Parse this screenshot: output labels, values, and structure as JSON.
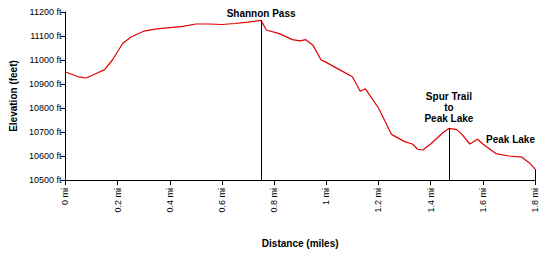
{
  "chart_data": {
    "type": "line",
    "x_label": "Distance (miles)",
    "y_label": "Elevation (feet)",
    "x": [
      0,
      0.05,
      0.08,
      0.12,
      0.15,
      0.18,
      0.22,
      0.25,
      0.3,
      0.35,
      0.4,
      0.45,
      0.5,
      0.55,
      0.6,
      0.65,
      0.7,
      0.75,
      0.77,
      0.82,
      0.87,
      0.9,
      0.92,
      0.95,
      0.98,
      1.0,
      1.05,
      1.1,
      1.13,
      1.15,
      1.2,
      1.25,
      1.3,
      1.33,
      1.35,
      1.37,
      1.4,
      1.45,
      1.47,
      1.5,
      1.52,
      1.55,
      1.58,
      1.6,
      1.65,
      1.7,
      1.75,
      1.78,
      1.8
    ],
    "values": [
      10950,
      10930,
      10925,
      10945,
      10960,
      11000,
      11070,
      11095,
      11120,
      11130,
      11135,
      11140,
      11150,
      11150,
      11148,
      11152,
      11158,
      11165,
      11125,
      11110,
      11085,
      11080,
      11085,
      11060,
      11000,
      10990,
      10960,
      10930,
      10870,
      10880,
      10800,
      10690,
      10660,
      10650,
      10628,
      10625,
      10650,
      10700,
      10715,
      10710,
      10690,
      10650,
      10670,
      10650,
      10610,
      10600,
      10595,
      10570,
      10545
    ],
    "color": "#e00000",
    "xlim": [
      0,
      1.8
    ],
    "xticks": [
      {
        "value": 0,
        "label": "0 mi"
      },
      {
        "value": 0.2,
        "label": "0.2 mi"
      },
      {
        "value": 0.4,
        "label": "0.4 mi"
      },
      {
        "value": 0.6,
        "label": "0.6 mi"
      },
      {
        "value": 0.8,
        "label": "0.8 mi"
      },
      {
        "value": 1,
        "label": "1 mi"
      },
      {
        "value": 1.2,
        "label": "1.2 mi"
      },
      {
        "value": 1.4,
        "label": "1.4 mi"
      },
      {
        "value": 1.6,
        "label": "1.6 mi"
      },
      {
        "value": 1.8,
        "label": "1.8 mi"
      }
    ],
    "ylim": [
      10500,
      11200
    ],
    "yticks": [
      {
        "value": 10500,
        "label": "10500 ft"
      },
      {
        "value": 10600,
        "label": "10600 ft"
      },
      {
        "value": 10700,
        "label": "10700 ft"
      },
      {
        "value": 10800,
        "label": "10800 ft"
      },
      {
        "value": 10900,
        "label": "10900 ft"
      },
      {
        "value": 11000,
        "label": "11000 ft"
      },
      {
        "value": 11100,
        "label": "11100 ft"
      },
      {
        "value": 11200,
        "label": "11200 ft"
      }
    ],
    "grid": false,
    "annotations": [
      {
        "text": "Shannon Pass",
        "x": 0.75,
        "y": 11165
      },
      {
        "text": "Spur Trail\nto\nPeak Lake",
        "x": 1.47,
        "y": 10715
      },
      {
        "text": "Peak Lake",
        "x": 1.8,
        "y": 10545
      }
    ]
  }
}
